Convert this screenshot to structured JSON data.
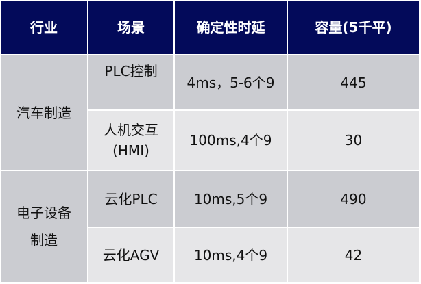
{
  "header": [
    "行业",
    "场景",
    "确定性时延",
    "容量(5千平)"
  ],
  "groups": [
    {
      "industry": "汽车制造",
      "rows": [
        {
          "scenario": "PLC控制",
          "latency": "4ms，5-6个9",
          "capacity": "445"
        },
        {
          "scenario_line1": "人机交互",
          "scenario_line2": "(HMI)",
          "latency": "100ms,4个9",
          "capacity": "30"
        }
      ]
    },
    {
      "industry_line1": "电子设备",
      "industry_line2": "制造",
      "rows": [
        {
          "scenario": "云化PLC",
          "latency": "10ms,5个9",
          "capacity": "490"
        },
        {
          "scenario": "云化AGV",
          "latency": "10ms,4个9",
          "capacity": "42"
        }
      ]
    }
  ],
  "colors": {
    "header_bg": "#030a5a",
    "row_dark": "#cbccd1",
    "row_light": "#e6e6e8"
  }
}
